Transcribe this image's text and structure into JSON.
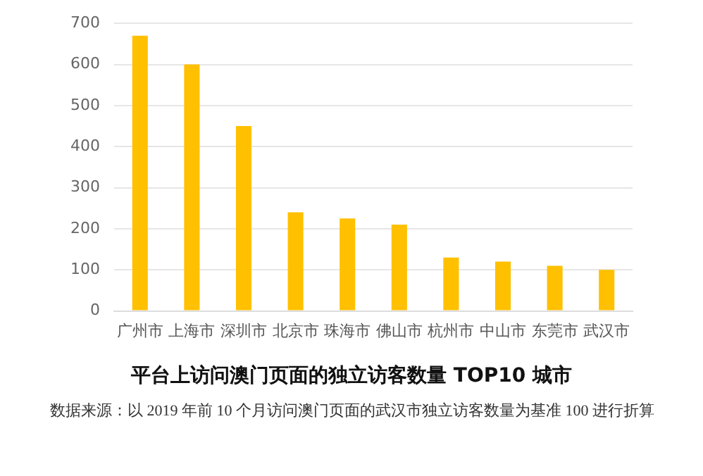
{
  "chart_data": {
    "type": "bar",
    "title": "平台上访问澳门页面的独立访客数量 TOP10 城市",
    "annotations": [
      "数据来源：以 2019 年前 10 个月访问澳门页面的武汉市独立访客数量为基准 100 进行折算"
    ],
    "categories": [
      "广州市",
      "上海市",
      "深圳市",
      "北京市",
      "珠海市",
      "佛山市",
      "杭州市",
      "中山市",
      "东莞市",
      "武汉市"
    ],
    "values": [
      670,
      600,
      450,
      240,
      225,
      210,
      130,
      120,
      110,
      100
    ],
    "color": "#ffc000",
    "ylim": [
      0,
      700
    ],
    "yticks": [
      0,
      100,
      200,
      300,
      400,
      500,
      600,
      700
    ],
    "grid": "y"
  }
}
